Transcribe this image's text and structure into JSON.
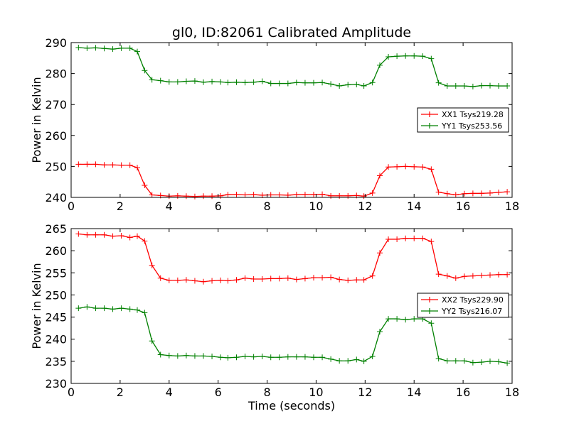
{
  "chart_data": [
    {
      "type": "line",
      "title": "gl0, ID:82061 Calibrated Amplitude",
      "xlabel": "",
      "ylabel": "Power in Kelvin",
      "xlim": [
        0,
        18
      ],
      "ylim": [
        240,
        290
      ],
      "xticks": [
        0,
        2,
        4,
        6,
        8,
        10,
        12,
        14,
        16,
        18
      ],
      "yticks": [
        240,
        250,
        260,
        270,
        280,
        290
      ],
      "grid": false,
      "legend": "center-right",
      "x": [
        0.3,
        0.65,
        1.0,
        1.35,
        1.7,
        2.05,
        2.4,
        2.7,
        3.0,
        3.3,
        3.65,
        4.0,
        4.35,
        4.7,
        5.05,
        5.4,
        5.75,
        6.1,
        6.4,
        6.75,
        7.1,
        7.45,
        7.8,
        8.15,
        8.5,
        8.85,
        9.2,
        9.55,
        9.9,
        10.25,
        10.6,
        10.95,
        11.3,
        11.65,
        11.95,
        12.3,
        12.6,
        12.95,
        13.3,
        13.65,
        14.0,
        14.35,
        14.7,
        15.0,
        15.35,
        15.7,
        16.05,
        16.4,
        16.75,
        17.1,
        17.45,
        17.8
      ],
      "series": [
        {
          "name": "XX1 Tsys219.28",
          "color": "#ff0000",
          "values": [
            250.7,
            250.7,
            250.7,
            250.5,
            250.5,
            250.4,
            250.4,
            249.6,
            243.9,
            240.8,
            240.6,
            240.4,
            240.5,
            240.4,
            240.3,
            240.4,
            240.4,
            240.5,
            240.9,
            240.9,
            240.8,
            240.9,
            240.7,
            240.8,
            240.8,
            240.7,
            240.9,
            240.9,
            240.9,
            241.0,
            240.5,
            240.5,
            240.5,
            240.6,
            240.4,
            241.4,
            247.0,
            249.8,
            249.9,
            250.0,
            249.9,
            249.8,
            249.1,
            241.7,
            241.2,
            240.8,
            241.2,
            241.3,
            241.3,
            241.4,
            241.6,
            241.8
          ]
        },
        {
          "name": "YY1 Tsys253.56",
          "color": "#008000",
          "values": [
            288.4,
            288.2,
            288.3,
            288.1,
            287.9,
            288.2,
            288.2,
            287.1,
            281.0,
            278.0,
            277.7,
            277.3,
            277.3,
            277.5,
            277.6,
            277.2,
            277.4,
            277.3,
            277.1,
            277.2,
            277.1,
            277.2,
            277.5,
            276.8,
            276.8,
            276.8,
            277.1,
            277.0,
            277.0,
            277.1,
            276.6,
            276.0,
            276.4,
            276.5,
            276.0,
            277.1,
            282.7,
            285.4,
            285.6,
            285.7,
            285.7,
            285.6,
            284.8,
            277.0,
            276.0,
            276.0,
            276.0,
            275.8,
            276.1,
            276.1,
            276.0,
            276.0
          ]
        }
      ]
    },
    {
      "type": "line",
      "title": "",
      "xlabel": "Time (seconds)",
      "ylabel": "Power in Kelvin",
      "xlim": [
        0,
        18
      ],
      "ylim": [
        230,
        265
      ],
      "xticks": [
        0,
        2,
        4,
        6,
        8,
        10,
        12,
        14,
        16,
        18
      ],
      "yticks": [
        230,
        235,
        240,
        245,
        250,
        255,
        260,
        265
      ],
      "grid": false,
      "legend": "center-right",
      "x": [
        0.3,
        0.65,
        1.0,
        1.35,
        1.7,
        2.05,
        2.4,
        2.7,
        3.0,
        3.3,
        3.65,
        4.0,
        4.35,
        4.7,
        5.05,
        5.4,
        5.75,
        6.1,
        6.4,
        6.75,
        7.1,
        7.45,
        7.8,
        8.15,
        8.5,
        8.85,
        9.2,
        9.55,
        9.9,
        10.25,
        10.6,
        10.95,
        11.3,
        11.65,
        11.95,
        12.3,
        12.6,
        12.95,
        13.3,
        13.65,
        14.0,
        14.35,
        14.7,
        15.0,
        15.35,
        15.7,
        16.05,
        16.4,
        16.75,
        17.1,
        17.45,
        17.8
      ],
      "series": [
        {
          "name": "XX2 Tsys229.90",
          "color": "#ff0000",
          "values": [
            263.8,
            263.6,
            263.6,
            263.6,
            263.3,
            263.4,
            263.0,
            263.3,
            262.2,
            256.7,
            253.8,
            253.3,
            253.3,
            253.4,
            253.2,
            253.0,
            253.2,
            253.3,
            253.2,
            253.4,
            253.8,
            253.6,
            253.6,
            253.7,
            253.7,
            253.8,
            253.5,
            253.7,
            253.9,
            253.9,
            254.0,
            253.5,
            253.3,
            253.4,
            253.4,
            254.3,
            259.5,
            262.6,
            262.6,
            262.8,
            262.8,
            262.8,
            262.1,
            254.7,
            254.3,
            253.8,
            254.2,
            254.3,
            254.4,
            254.5,
            254.6,
            254.6
          ]
        },
        {
          "name": "YY2 Tsys216.07",
          "color": "#008000",
          "values": [
            247.0,
            247.3,
            247.0,
            247.0,
            246.8,
            247.0,
            246.8,
            246.6,
            246.0,
            239.6,
            236.5,
            236.3,
            236.2,
            236.3,
            236.2,
            236.2,
            236.1,
            235.9,
            235.8,
            235.9,
            236.1,
            236.0,
            236.1,
            235.9,
            235.9,
            236.0,
            236.0,
            236.0,
            235.9,
            235.9,
            235.5,
            235.1,
            235.1,
            235.4,
            235.0,
            236.1,
            241.7,
            244.6,
            244.6,
            244.4,
            244.6,
            244.6,
            243.6,
            235.6,
            235.1,
            235.1,
            235.1,
            234.7,
            234.8,
            235.0,
            234.9,
            234.6
          ]
        }
      ]
    }
  ]
}
